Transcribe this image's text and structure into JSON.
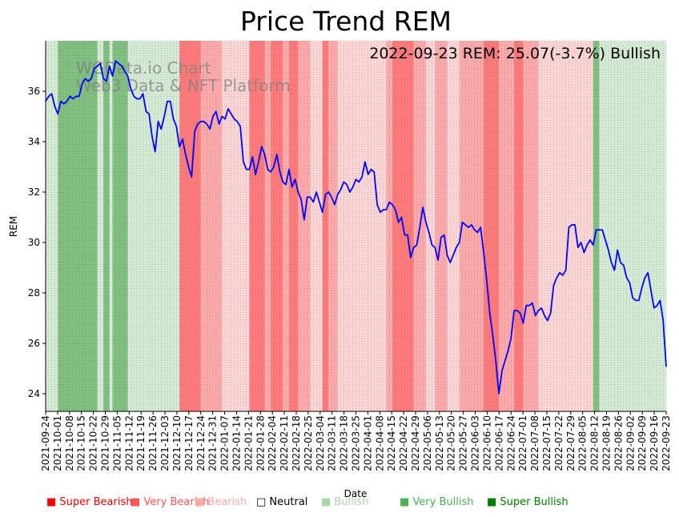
{
  "chart_data": {
    "type": "line",
    "title": "Price Trend REM",
    "annotation": "2022-09-23 REM: 25.07(-3.7%) Bullish",
    "watermark": [
      "WGData.io Chart",
      "Web3 Data & NFT Platform"
    ],
    "xlabel": "Date",
    "ylabel": "REM",
    "ylim": [
      23.3,
      38.0
    ],
    "yticks": [
      24,
      26,
      28,
      30,
      32,
      34,
      36
    ],
    "xticks": [
      "2021-09-24",
      "2021-10-01",
      "2021-10-08",
      "2021-10-15",
      "2021-10-22",
      "2021-10-29",
      "2021-11-05",
      "2021-11-12",
      "2021-11-19",
      "2021-11-26",
      "2021-12-03",
      "2021-12-10",
      "2021-12-17",
      "2021-12-24",
      "2021-12-31",
      "2022-01-07",
      "2022-01-14",
      "2022-01-21",
      "2022-01-28",
      "2022-02-04",
      "2022-02-11",
      "2022-02-18",
      "2022-02-25",
      "2022-03-04",
      "2022-03-11",
      "2022-03-18",
      "2022-03-25",
      "2022-04-01",
      "2022-04-08",
      "2022-04-15",
      "2022-04-22",
      "2022-04-29",
      "2022-05-06",
      "2022-05-13",
      "2022-05-20",
      "2022-05-27",
      "2022-06-03",
      "2022-06-10",
      "2022-06-17",
      "2022-06-24",
      "2022-07-01",
      "2022-07-08",
      "2022-07-15",
      "2022-07-22",
      "2022-07-29",
      "2022-08-05",
      "2022-08-12",
      "2022-08-19",
      "2022-08-26",
      "2022-09-02",
      "2022-09-09",
      "2022-09-16",
      "2022-09-23"
    ],
    "series": [
      {
        "name": "REM",
        "color": "#0000ff",
        "points": [
          [
            0,
            35.6
          ],
          [
            1,
            35.8
          ],
          [
            2,
            35.9
          ],
          [
            3,
            35.4
          ],
          [
            4,
            35.1
          ],
          [
            5,
            35.6
          ],
          [
            6,
            35.5
          ],
          [
            7,
            35.6
          ],
          [
            8,
            35.8
          ],
          [
            9,
            35.7
          ],
          [
            10,
            35.8
          ],
          [
            11,
            35.8
          ],
          [
            12,
            36.3
          ],
          [
            13,
            36.5
          ],
          [
            14,
            36.4
          ],
          [
            15,
            36.5
          ],
          [
            16,
            36.9
          ],
          [
            17,
            37.0
          ],
          [
            18,
            37.1
          ],
          [
            19,
            36.5
          ],
          [
            20,
            36.4
          ],
          [
            21,
            37.0
          ],
          [
            22,
            36.6
          ],
          [
            23,
            37.2
          ],
          [
            24,
            37.1
          ],
          [
            25,
            37.0
          ],
          [
            26,
            36.8
          ],
          [
            27,
            36.6
          ],
          [
            28,
            36.1
          ],
          [
            29,
            35.8
          ],
          [
            30,
            35.7
          ],
          [
            31,
            35.7
          ],
          [
            32,
            35.9
          ],
          [
            33,
            35.2
          ],
          [
            34,
            35.1
          ],
          [
            35,
            34.2
          ],
          [
            36,
            33.6
          ],
          [
            37,
            34.8
          ],
          [
            38,
            34.5
          ],
          [
            39,
            35.0
          ],
          [
            40,
            35.6
          ],
          [
            41,
            35.6
          ],
          [
            42,
            34.9
          ],
          [
            43,
            34.6
          ],
          [
            44,
            33.8
          ],
          [
            45,
            34.1
          ],
          [
            46,
            33.5
          ],
          [
            47,
            33.0
          ],
          [
            48,
            32.6
          ],
          [
            49,
            34.4
          ],
          [
            50,
            34.7
          ],
          [
            51,
            34.8
          ],
          [
            52,
            34.8
          ],
          [
            53,
            34.7
          ],
          [
            54,
            34.5
          ],
          [
            55,
            35.0
          ],
          [
            56,
            35.2
          ],
          [
            57,
            34.7
          ],
          [
            58,
            35.0
          ],
          [
            59,
            34.9
          ],
          [
            60,
            35.3
          ],
          [
            61,
            35.1
          ],
          [
            62,
            34.9
          ],
          [
            63,
            34.8
          ],
          [
            64,
            34.6
          ],
          [
            65,
            33.2
          ],
          [
            66,
            32.9
          ],
          [
            67,
            32.9
          ],
          [
            68,
            33.4
          ],
          [
            69,
            32.7
          ],
          [
            70,
            33.2
          ],
          [
            71,
            33.8
          ],
          [
            72,
            33.5
          ],
          [
            73,
            32.9
          ],
          [
            74,
            32.8
          ],
          [
            75,
            33.0
          ],
          [
            76,
            33.5
          ],
          [
            77,
            32.8
          ],
          [
            78,
            32.4
          ],
          [
            79,
            32.3
          ],
          [
            80,
            32.9
          ],
          [
            81,
            32.2
          ],
          [
            82,
            32.5
          ],
          [
            83,
            32.0
          ],
          [
            84,
            31.7
          ],
          [
            85,
            30.9
          ],
          [
            86,
            31.8
          ],
          [
            87,
            31.8
          ],
          [
            88,
            31.6
          ],
          [
            89,
            32.0
          ],
          [
            90,
            31.6
          ],
          [
            91,
            31.2
          ],
          [
            92,
            31.9
          ],
          [
            93,
            32.0
          ],
          [
            94,
            31.8
          ],
          [
            95,
            31.5
          ],
          [
            96,
            31.9
          ],
          [
            97,
            32.1
          ],
          [
            98,
            32.4
          ],
          [
            99,
            32.3
          ],
          [
            100,
            32.0
          ],
          [
            101,
            32.2
          ],
          [
            102,
            32.5
          ],
          [
            103,
            32.4
          ],
          [
            104,
            32.6
          ],
          [
            105,
            33.2
          ],
          [
            106,
            32.7
          ],
          [
            107,
            32.9
          ],
          [
            108,
            32.8
          ],
          [
            109,
            31.5
          ],
          [
            110,
            31.2
          ],
          [
            111,
            31.3
          ],
          [
            112,
            31.3
          ],
          [
            113,
            31.6
          ],
          [
            114,
            31.5
          ],
          [
            115,
            31.3
          ],
          [
            116,
            30.8
          ],
          [
            117,
            31.0
          ],
          [
            118,
            30.3
          ],
          [
            119,
            30.3
          ],
          [
            120,
            29.4
          ],
          [
            121,
            29.8
          ],
          [
            122,
            29.9
          ],
          [
            123,
            30.6
          ],
          [
            124,
            31.4
          ],
          [
            125,
            30.8
          ],
          [
            126,
            30.4
          ],
          [
            127,
            29.9
          ],
          [
            128,
            29.8
          ],
          [
            129,
            29.3
          ],
          [
            130,
            30.2
          ],
          [
            131,
            30.3
          ],
          [
            132,
            29.5
          ],
          [
            133,
            29.2
          ],
          [
            134,
            29.5
          ],
          [
            135,
            29.8
          ],
          [
            136,
            30.0
          ],
          [
            137,
            30.8
          ],
          [
            138,
            30.7
          ],
          [
            139,
            30.6
          ],
          [
            140,
            30.7
          ],
          [
            141,
            30.5
          ],
          [
            142,
            30.4
          ],
          [
            143,
            30.6
          ],
          [
            144,
            29.6
          ],
          [
            145,
            28.5
          ],
          [
            146,
            27.2
          ],
          [
            147,
            26.3
          ],
          [
            148,
            25.3
          ],
          [
            149,
            24.0
          ],
          [
            150,
            24.9
          ],
          [
            151,
            25.3
          ],
          [
            152,
            25.7
          ],
          [
            153,
            26.2
          ],
          [
            154,
            27.3
          ],
          [
            155,
            27.3
          ],
          [
            156,
            27.2
          ],
          [
            157,
            26.8
          ],
          [
            158,
            27.5
          ],
          [
            159,
            27.5
          ],
          [
            160,
            27.6
          ],
          [
            161,
            27.1
          ],
          [
            162,
            27.3
          ],
          [
            163,
            27.4
          ],
          [
            164,
            27.1
          ],
          [
            165,
            26.9
          ],
          [
            166,
            27.2
          ],
          [
            167,
            28.3
          ],
          [
            168,
            28.6
          ],
          [
            169,
            28.8
          ],
          [
            170,
            28.7
          ],
          [
            171,
            28.9
          ],
          [
            172,
            30.6
          ],
          [
            173,
            30.7
          ],
          [
            174,
            30.7
          ],
          [
            175,
            29.8
          ],
          [
            176,
            30.0
          ],
          [
            177,
            29.6
          ],
          [
            178,
            29.9
          ],
          [
            179,
            30.1
          ],
          [
            180,
            29.9
          ],
          [
            181,
            30.5
          ],
          [
            182,
            30.5
          ],
          [
            183,
            30.5
          ],
          [
            184,
            30.1
          ],
          [
            185,
            29.7
          ],
          [
            186,
            29.2
          ],
          [
            187,
            28.9
          ],
          [
            188,
            29.7
          ],
          [
            189,
            29.2
          ],
          [
            190,
            29.1
          ],
          [
            191,
            28.6
          ],
          [
            192,
            28.4
          ],
          [
            193,
            27.8
          ],
          [
            194,
            27.7
          ],
          [
            195,
            27.7
          ],
          [
            196,
            28.2
          ],
          [
            197,
            28.6
          ],
          [
            198,
            28.8
          ],
          [
            199,
            28.1
          ],
          [
            200,
            27.4
          ],
          [
            201,
            27.5
          ],
          [
            202,
            27.7
          ],
          [
            203,
            26.9
          ],
          [
            204,
            25.07
          ]
        ]
      }
    ],
    "bands": [
      {
        "from": 0,
        "to": 4,
        "level": "bullish"
      },
      {
        "from": 4,
        "to": 17,
        "level": "very_bullish"
      },
      {
        "from": 17,
        "to": 19,
        "level": "bullish"
      },
      {
        "from": 19,
        "to": 21,
        "level": "very_bullish"
      },
      {
        "from": 21,
        "to": 22,
        "level": "bullish"
      },
      {
        "from": 22,
        "to": 27,
        "level": "very_bullish"
      },
      {
        "from": 27,
        "to": 44,
        "level": "bullish"
      },
      {
        "from": 44,
        "to": 51,
        "level": "super_bearish"
      },
      {
        "from": 51,
        "to": 58,
        "level": "very_bearish"
      },
      {
        "from": 58,
        "to": 67,
        "level": "bearish"
      },
      {
        "from": 67,
        "to": 72,
        "level": "super_bearish"
      },
      {
        "from": 72,
        "to": 74,
        "level": "very_bearish"
      },
      {
        "from": 74,
        "to": 78,
        "level": "super_bearish"
      },
      {
        "from": 78,
        "to": 80,
        "level": "very_bearish"
      },
      {
        "from": 80,
        "to": 83,
        "level": "super_bearish"
      },
      {
        "from": 83,
        "to": 87,
        "level": "very_bearish"
      },
      {
        "from": 87,
        "to": 91,
        "level": "bearish"
      },
      {
        "from": 91,
        "to": 93,
        "level": "super_bearish"
      },
      {
        "from": 93,
        "to": 96,
        "level": "very_bearish"
      },
      {
        "from": 96,
        "to": 112,
        "level": "bearish"
      },
      {
        "from": 112,
        "to": 114,
        "level": "very_bearish"
      },
      {
        "from": 114,
        "to": 121,
        "level": "super_bearish"
      },
      {
        "from": 121,
        "to": 125,
        "level": "very_bearish"
      },
      {
        "from": 125,
        "to": 128,
        "level": "bearish"
      },
      {
        "from": 128,
        "to": 132,
        "level": "very_bearish"
      },
      {
        "from": 132,
        "to": 136,
        "level": "bearish"
      },
      {
        "from": 136,
        "to": 144,
        "level": "very_bearish"
      },
      {
        "from": 144,
        "to": 149,
        "level": "super_bearish"
      },
      {
        "from": 149,
        "to": 154,
        "level": "very_bearish"
      },
      {
        "from": 154,
        "to": 157,
        "level": "super_bearish"
      },
      {
        "from": 157,
        "to": 162,
        "level": "very_bearish"
      },
      {
        "from": 162,
        "to": 180,
        "level": "bearish"
      },
      {
        "from": 180,
        "to": 182,
        "level": "very_bullish"
      },
      {
        "from": 182,
        "to": 184,
        "level": "bullish"
      },
      {
        "from": 184,
        "to": 205,
        "level": "bullish"
      }
    ],
    "legend": [
      {
        "label": "Super Bearish",
        "color": "#ff0000",
        "level": "super_bearish"
      },
      {
        "label": "Very Bearish",
        "color": "#ff5555",
        "level": "very_bearish"
      },
      {
        "label": "Bearish",
        "color": "#ffaaaa",
        "level": "bearish"
      },
      {
        "label": "Neutral",
        "color": "#000000",
        "level": "neutral"
      },
      {
        "label": "Bullish",
        "color": "#a8d8a8",
        "level": "bullish"
      },
      {
        "label": "Very Bullish",
        "color": "#4caf50",
        "level": "very_bullish"
      },
      {
        "label": "Super Bullish",
        "color": "#008000",
        "level": "super_bullish"
      }
    ],
    "band_colors": {
      "super_bearish": "#ff7b7b",
      "very_bearish": "#ffaaaa",
      "bearish": "#ffd6d6",
      "bullish": "#d5ebd5",
      "very_bullish": "#80c080",
      "super_bullish": "#2e9a2e"
    }
  }
}
